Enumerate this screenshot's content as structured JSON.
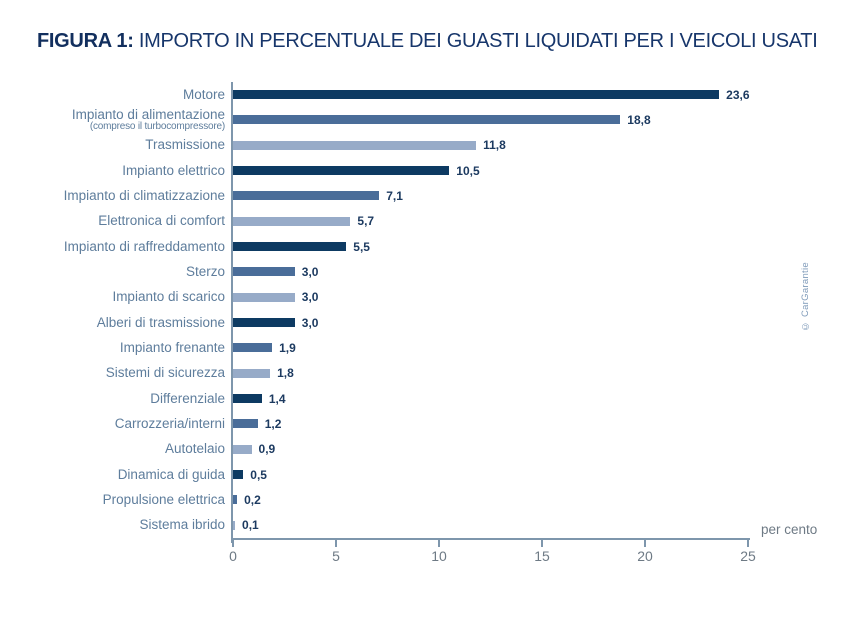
{
  "title": {
    "label": "FIGURA 1:",
    "text": "IMPORTO IN PERCENTUALE DEI GUASTI LIQUIDATI PER I VEICOLI USATI"
  },
  "watermark": "© CarGarantie",
  "chart_data": {
    "type": "bar",
    "orientation": "horizontal",
    "title": "FIGURA 1: IMPORTO IN PERCENTUALE DEI GUASTI LIQUIDATI PER I VEICOLI USATI",
    "xlabel": "per cento",
    "xlim": [
      0,
      25
    ],
    "xticks": [
      0,
      5,
      10,
      15,
      20,
      25
    ],
    "grid": false,
    "legend": null,
    "palette": {
      "dark": "#0d3a62",
      "medium": "#4a6d99",
      "light": "#97abc8"
    },
    "items": [
      {
        "label": "Motore",
        "sublabel": "",
        "value": 23.6,
        "display": "23,6",
        "color": "dark"
      },
      {
        "label": "Impianto di alimentazione",
        "sublabel": "(compreso il turbocompressore)",
        "value": 18.8,
        "display": "18,8",
        "color": "medium"
      },
      {
        "label": "Trasmissione",
        "sublabel": "",
        "value": 11.8,
        "display": "11,8",
        "color": "light"
      },
      {
        "label": "Impianto elettrico",
        "sublabel": "",
        "value": 10.5,
        "display": "10,5",
        "color": "dark"
      },
      {
        "label": "Impianto di climatizzazione",
        "sublabel": "",
        "value": 7.1,
        "display": "7,1",
        "color": "medium"
      },
      {
        "label": "Elettronica di comfort",
        "sublabel": "",
        "value": 5.7,
        "display": "5,7",
        "color": "light"
      },
      {
        "label": "Impianto di raffreddamento",
        "sublabel": "",
        "value": 5.5,
        "display": "5,5",
        "color": "dark"
      },
      {
        "label": "Sterzo",
        "sublabel": "",
        "value": 3.0,
        "display": "3,0",
        "color": "medium"
      },
      {
        "label": "Impianto di scarico",
        "sublabel": "",
        "value": 3.0,
        "display": "3,0",
        "color": "light"
      },
      {
        "label": "Alberi di trasmissione",
        "sublabel": "",
        "value": 3.0,
        "display": "3,0",
        "color": "dark"
      },
      {
        "label": "Impianto frenante",
        "sublabel": "",
        "value": 1.9,
        "display": "1,9",
        "color": "medium"
      },
      {
        "label": "Sistemi di sicurezza",
        "sublabel": "",
        "value": 1.8,
        "display": "1,8",
        "color": "light"
      },
      {
        "label": "Differenziale",
        "sublabel": "",
        "value": 1.4,
        "display": "1,4",
        "color": "dark"
      },
      {
        "label": "Carrozzeria/interni",
        "sublabel": "",
        "value": 1.2,
        "display": "1,2",
        "color": "medium"
      },
      {
        "label": "Autotelaio",
        "sublabel": "",
        "value": 0.9,
        "display": "0,9",
        "color": "light"
      },
      {
        "label": "Dinamica di guida",
        "sublabel": "",
        "value": 0.5,
        "display": "0,5",
        "color": "dark"
      },
      {
        "label": "Propulsione elettrica",
        "sublabel": "",
        "value": 0.2,
        "display": "0,2",
        "color": "medium"
      },
      {
        "label": "Sistema ibrido",
        "sublabel": "",
        "value": 0.1,
        "display": "0,1",
        "color": "light"
      }
    ]
  }
}
